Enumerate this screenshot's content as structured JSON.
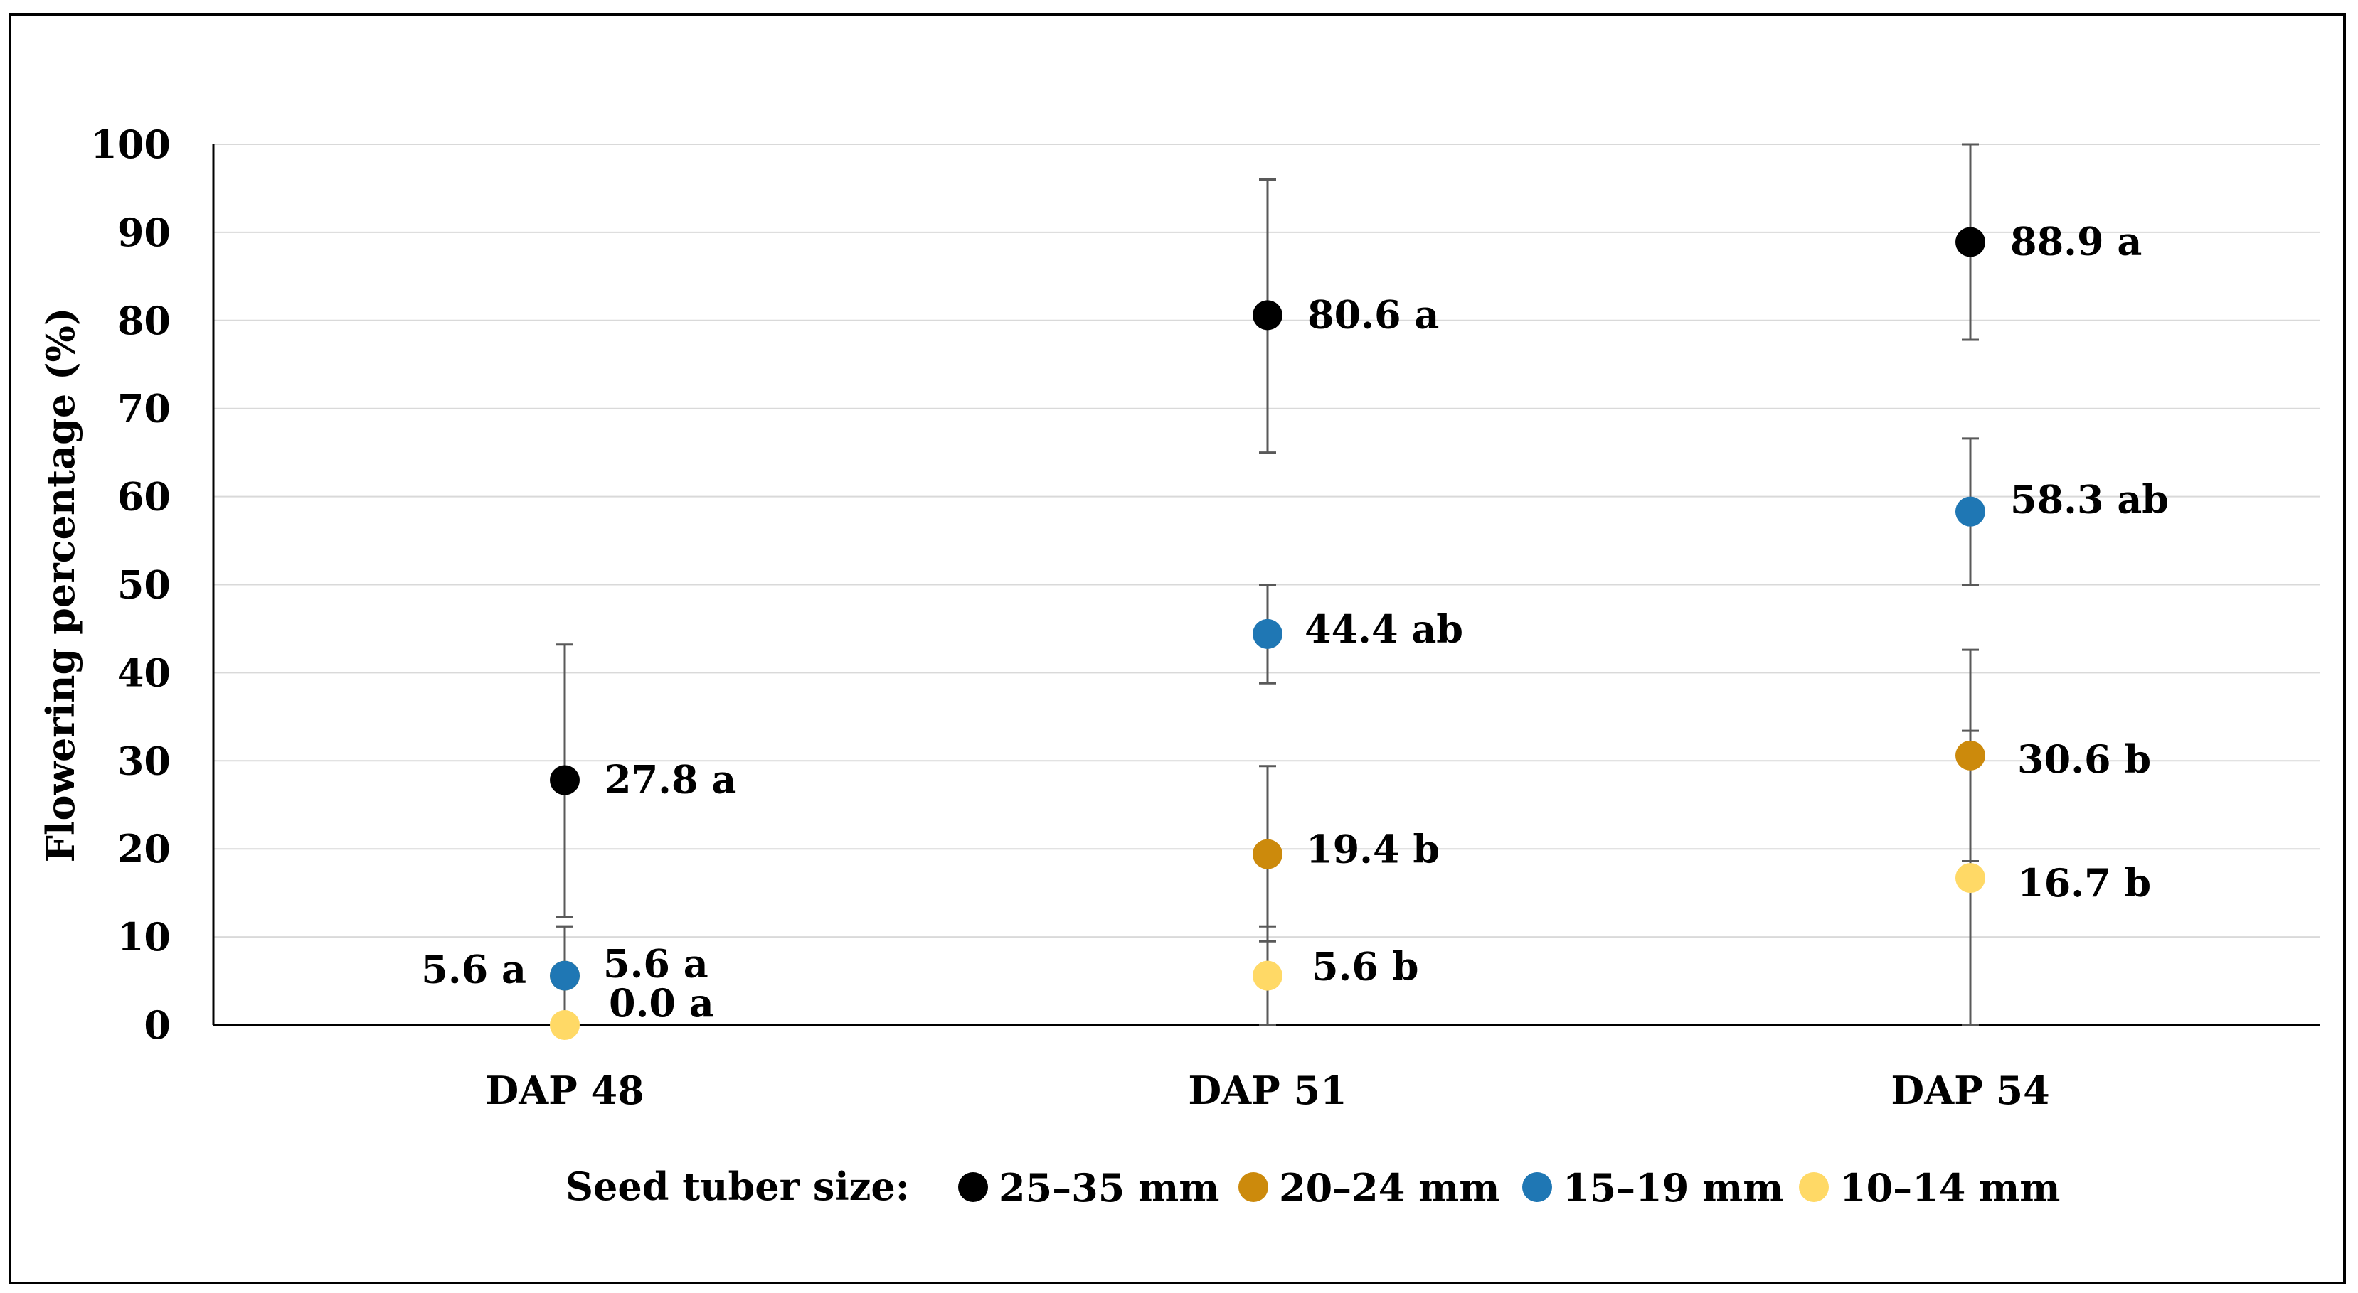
{
  "chart_data": {
    "type": "scatter",
    "ylabel": "Flowering percentage (%)",
    "xlabel": "",
    "ylim": [
      0,
      100
    ],
    "yticks": [
      "0",
      "10",
      "20",
      "30",
      "40",
      "50",
      "60",
      "70",
      "80",
      "90",
      "100"
    ],
    "categories": [
      "DAP 48",
      "DAP 51",
      "DAP 54"
    ],
    "grid": true,
    "legend": {
      "title": "Seed tuber size:",
      "position": "bottom"
    },
    "series": [
      {
        "name": "25–35 mm",
        "color": "#000000",
        "values": [
          27.8,
          80.6,
          88.9
        ],
        "err_low": [
          12.3,
          65.0,
          77.8
        ],
        "err_high": [
          43.2,
          96.0,
          100.0
        ],
        "labels": [
          "27.8 a",
          "80.6 a",
          "88.9 a"
        ]
      },
      {
        "name": "20–24 mm",
        "color": "#CC8A0C",
        "values": [
          5.6,
          19.4,
          30.6
        ],
        "err_low": [
          0.0,
          9.5,
          18.6
        ],
        "err_high": [
          11.2,
          29.4,
          42.6
        ],
        "labels": [
          "5.6 a",
          "19.4 b",
          "30.6 b"
        ]
      },
      {
        "name": "15–19 mm",
        "color": "#1F77B4",
        "values": [
          5.6,
          44.4,
          58.3
        ],
        "err_low": [
          0.0,
          38.8,
          50.0
        ],
        "err_high": [
          11.2,
          50.0,
          66.6
        ],
        "labels": [
          "5.6 a",
          "44.4 ab",
          "58.3 ab"
        ]
      },
      {
        "name": "10–14 mm",
        "color": "#FFD966",
        "values": [
          0.0,
          5.6,
          16.7
        ],
        "err_low": [
          0.0,
          0.0,
          0.0
        ],
        "err_high": [
          0.0,
          11.2,
          33.4
        ],
        "labels": [
          "0.0 a",
          "5.6 b",
          "16.7 b"
        ]
      }
    ]
  }
}
